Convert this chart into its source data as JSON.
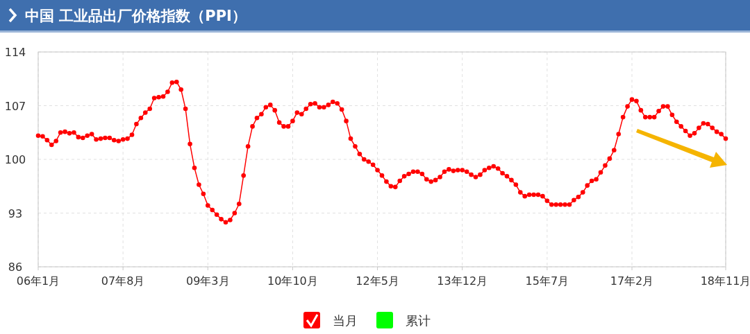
{
  "chart_data": {
    "type": "line",
    "title": "中国 工业品出厂价格指数（PPI）",
    "categories": [
      "06年1月",
      null,
      null,
      null,
      null,
      null,
      null,
      null,
      null,
      null,
      null,
      null,
      null,
      null,
      null,
      null,
      null,
      null,
      null,
      "07年8月",
      null,
      null,
      null,
      null,
      null,
      null,
      null,
      null,
      null,
      null,
      null,
      null,
      null,
      null,
      null,
      null,
      null,
      null,
      "09年3月",
      null,
      null,
      null,
      null,
      null,
      null,
      null,
      null,
      null,
      null,
      null,
      null,
      null,
      null,
      null,
      null,
      null,
      null,
      "10年10月",
      null,
      null,
      null,
      null,
      null,
      null,
      null,
      null,
      null,
      null,
      null,
      null,
      null,
      null,
      null,
      null,
      null,
      null,
      "12年5月",
      null,
      null,
      null,
      null,
      null,
      null,
      null,
      null,
      null,
      null,
      null,
      null,
      null,
      null,
      null,
      null,
      null,
      null,
      "13年12月",
      null,
      null,
      null,
      null,
      null,
      null,
      null,
      null,
      null,
      null,
      null,
      null,
      null,
      null,
      null,
      null,
      null,
      null,
      "15年7月",
      null,
      null,
      null,
      null,
      null,
      null,
      null,
      null,
      null,
      null,
      null,
      null,
      null,
      null,
      null,
      null,
      null,
      null,
      "17年2月",
      null,
      null,
      null,
      null,
      null,
      null,
      null,
      null,
      null,
      null,
      null,
      null,
      null,
      null,
      null,
      null,
      null,
      null,
      null,
      null,
      "18年11月"
    ],
    "series": [
      {
        "name": "当月",
        "color": "#ff0000",
        "values": [
          103.1,
          103.0,
          102.5,
          101.9,
          102.4,
          103.5,
          103.6,
          103.4,
          103.5,
          102.9,
          102.8,
          103.1,
          103.3,
          102.6,
          102.7,
          102.8,
          102.8,
          102.5,
          102.4,
          102.6,
          102.7,
          103.2,
          104.6,
          105.4,
          106.1,
          106.6,
          108.0,
          108.1,
          108.2,
          108.8,
          110.0,
          110.1,
          109.1,
          106.6,
          102.0,
          98.9,
          96.7,
          95.5,
          94.0,
          93.4,
          92.8,
          92.2,
          91.8,
          92.1,
          93.0,
          94.2,
          97.9,
          101.7,
          104.3,
          105.4,
          105.9,
          106.8,
          107.1,
          106.4,
          104.8,
          104.3,
          104.3,
          105.0,
          106.1,
          105.9,
          106.6,
          107.2,
          107.3,
          106.8,
          106.8,
          107.1,
          107.5,
          107.3,
          106.5,
          105.0,
          102.7,
          101.7,
          100.7,
          100.0,
          99.7,
          99.3,
          98.6,
          97.9,
          97.1,
          96.5,
          96.4,
          97.2,
          97.8,
          98.1,
          98.4,
          98.4,
          98.1,
          97.4,
          97.1,
          97.3,
          97.7,
          98.4,
          98.7,
          98.5,
          98.6,
          98.6,
          98.4,
          98.0,
          97.7,
          98.0,
          98.6,
          98.9,
          99.1,
          98.8,
          98.2,
          97.8,
          97.3,
          96.7,
          95.7,
          95.2,
          95.4,
          95.4,
          95.4,
          95.2,
          94.6,
          94.1,
          94.1,
          94.1,
          94.1,
          94.1,
          94.7,
          95.1,
          95.7,
          96.6,
          97.2,
          97.4,
          98.3,
          99.2,
          100.1,
          101.2,
          103.3,
          105.5,
          106.9,
          107.8,
          107.6,
          106.4,
          105.5,
          105.5,
          105.5,
          106.3,
          106.9,
          106.9,
          105.8,
          104.9,
          104.3,
          103.7,
          103.1,
          103.4,
          104.1,
          104.7,
          104.6,
          104.1,
          103.6,
          103.3,
          102.7
        ]
      },
      {
        "name": "累计",
        "color": "#00ff00",
        "values": [
          null,
          null,
          null,
          null,
          null,
          null,
          null,
          null,
          null,
          null,
          null,
          null,
          null,
          null,
          null,
          null,
          null,
          null,
          null,
          null,
          null,
          null,
          null,
          null,
          null,
          null,
          null,
          null,
          null,
          null,
          null,
          null,
          null,
          null,
          null,
          null,
          null,
          null,
          null,
          null,
          null,
          null,
          null,
          null,
          null,
          null,
          null,
          null,
          null,
          null,
          null,
          null,
          null,
          null,
          null,
          null,
          null,
          null,
          null,
          null,
          null,
          null,
          null,
          null,
          null,
          null,
          null,
          null,
          null,
          null,
          null,
          null,
          null,
          null,
          null,
          null,
          null,
          null,
          null,
          null,
          null,
          null,
          null,
          null,
          null,
          null,
          null,
          null,
          null,
          null,
          null,
          null,
          null,
          null,
          null,
          null,
          null,
          null,
          null,
          null,
          null,
          null,
          null,
          null,
          null,
          null,
          null,
          null,
          null,
          null,
          null,
          null,
          null,
          null,
          null,
          null,
          null,
          null,
          null,
          null,
          null,
          null,
          null,
          null,
          null,
          null,
          null,
          null,
          null,
          null,
          null,
          null,
          null,
          null,
          null,
          null,
          null,
          null,
          null,
          null,
          null,
          null,
          null,
          null,
          null,
          null,
          null,
          null,
          null,
          null,
          null,
          null,
          null,
          null,
          null
        ]
      }
    ],
    "ylim": [
      86,
      114
    ],
    "yticks": [
      86,
      93,
      100,
      107,
      114
    ],
    "grid": true,
    "legend": "bottom",
    "marker": "circle",
    "line_style": "solid"
  }
}
